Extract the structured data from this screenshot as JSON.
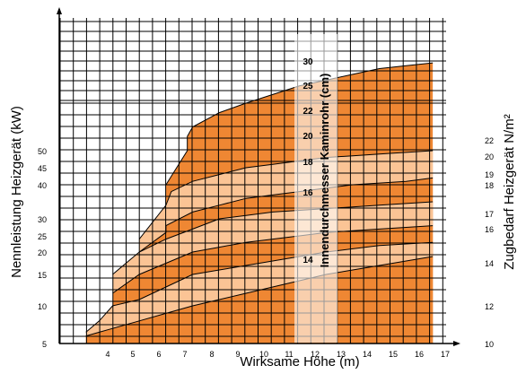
{
  "chart_data": {
    "type": "area",
    "xlabel": "Wirksame Höhe (m)",
    "ylabel": "Nennleistung Heizgerät (kW)",
    "y2label": "Zugbedarf Heizgerät N/m²",
    "overlay_label": "Innendurchmesser Kaminrohr (cm)",
    "x_ticks": [
      "4",
      "5",
      "6",
      "7",
      "8",
      "9",
      "10",
      "11",
      "12",
      "13",
      "14",
      "15",
      "16",
      "17"
    ],
    "y_ticks": [
      "5",
      "10",
      "15",
      "20",
      "25",
      "30",
      "40",
      "45",
      "50"
    ],
    "y2_ticks": [
      "10",
      "12",
      "14",
      "16",
      "17",
      "18",
      "19",
      "20",
      "22"
    ],
    "xlim": [
      3,
      17.5
    ],
    "ylim": [
      5,
      72
    ],
    "colors": {
      "dark": "#ef8733",
      "light": "#fbc495",
      "grid": "#000000",
      "overlay": "#ffffff"
    },
    "series": [
      {
        "name": "14",
        "band_color": "dark",
        "x": [
          4,
          4.5,
          5,
          6,
          7,
          8,
          9,
          10,
          11,
          12,
          13,
          14,
          15,
          16,
          17
        ],
        "values": [
          6,
          6.5,
          7,
          8,
          9,
          10,
          11,
          12,
          13,
          14,
          15,
          16,
          17,
          18,
          19
        ]
      },
      {
        "name": "16",
        "band_color": "light",
        "x": [
          4,
          4.5,
          5,
          6,
          7,
          8,
          9,
          10,
          11,
          12,
          13,
          14,
          15,
          16,
          17
        ],
        "values": [
          6.5,
          8,
          10,
          11,
          13,
          15,
          16,
          17,
          18,
          19,
          20,
          21,
          22,
          22.5,
          23
        ]
      },
      {
        "name": "18",
        "band_color": "dark",
        "x": [
          5,
          6,
          7,
          8,
          9,
          10,
          11,
          12,
          13,
          14,
          15,
          16,
          17
        ],
        "values": [
          12,
          15,
          17.5,
          20,
          21.5,
          23,
          24,
          25,
          26,
          26.5,
          27,
          27.5,
          28
        ]
      },
      {
        "name": "20",
        "band_color": "light",
        "x": [
          5,
          6,
          7,
          8,
          9,
          10,
          11,
          12,
          13,
          14,
          15,
          16,
          17
        ],
        "values": [
          15,
          20,
          24,
          27,
          30,
          31,
          32,
          32.5,
          33,
          33.5,
          34,
          34.5,
          35
        ]
      },
      {
        "name": "22",
        "band_color": "dark",
        "x": [
          6,
          7,
          7,
          8,
          9,
          10,
          11,
          12,
          13,
          14,
          15,
          16,
          17
        ],
        "values": [
          20,
          26,
          28,
          32,
          34,
          36,
          37,
          38,
          39,
          40,
          40.5,
          41,
          42
        ]
      },
      {
        "name": "25",
        "band_color": "light",
        "x": [
          6,
          7,
          7.2,
          8,
          9,
          10,
          11,
          12,
          13,
          14,
          15,
          16,
          17
        ],
        "values": [
          24,
          34,
          38,
          41,
          43,
          45,
          46,
          47,
          48,
          48.5,
          49,
          49.5,
          50
        ]
      },
      {
        "name": "30",
        "band_color": "dark",
        "x": [
          7,
          7.8,
          7.8,
          8,
          9,
          10,
          11,
          12,
          13,
          14,
          15,
          16,
          17
        ],
        "values": [
          40,
          50,
          53,
          55,
          58,
          60,
          61.5,
          63,
          64,
          65,
          66,
          66.5,
          67
        ]
      }
    ]
  }
}
